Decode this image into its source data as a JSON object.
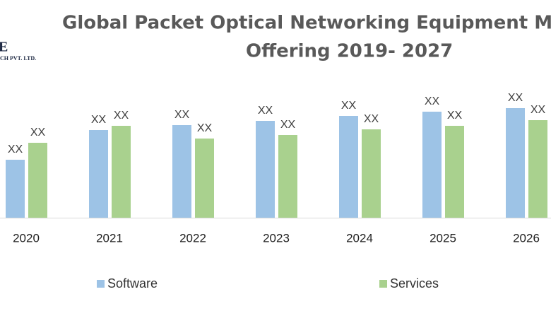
{
  "chart_data": {
    "type": "bar",
    "title": "Global Packet Optical Networking Equipment Ma",
    "subtitle": "Offering 2019- 2027",
    "logo": {
      "mark": "E",
      "text": "CH PVT. LTD."
    },
    "categories": [
      "2020",
      "2021",
      "2022",
      "2023",
      "2024",
      "2025",
      "2026"
    ],
    "series": [
      {
        "name": "Software",
        "color": "#9dc3e6",
        "values": [
          82,
          124,
          131,
          137,
          144,
          150,
          155
        ],
        "value_labels": [
          "XX",
          "XX",
          "XX",
          "XX",
          "XX",
          "XX",
          "XX"
        ]
      },
      {
        "name": "Services",
        "color": "#a9d18e",
        "values": [
          106,
          130,
          112,
          117,
          125,
          130,
          138
        ],
        "value_labels": [
          "XX",
          "XX",
          "XX",
          "XX",
          "XX",
          "XX",
          "XX"
        ]
      }
    ]
  }
}
